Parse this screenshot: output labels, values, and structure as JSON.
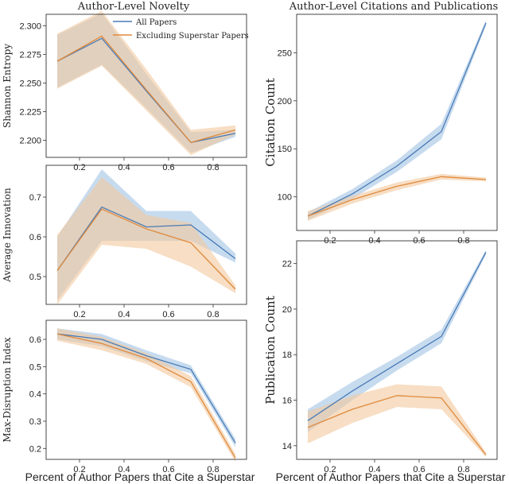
{
  "figure": {
    "left_title": "Author-Level Novelty",
    "right_title": "Author-Level Citations and Publications",
    "left_xlabel": "Percent of Author Papers that Cite a Superstar",
    "right_xlabel": "Percent of Author Papers that Cite a Superstar"
  },
  "legend": {
    "items": [
      {
        "label": "All Papers",
        "color": "#4a7bb5"
      },
      {
        "label": "Excluding Superstar Papers",
        "color": "#e08a3c"
      }
    ]
  },
  "colors": {
    "all": "#4a7bb5",
    "all_band": "#a9c7e6",
    "excl": "#e08a3c",
    "excl_band": "#f2c89c",
    "axis": "#333333"
  },
  "chart_data": [
    {
      "id": "shannon",
      "type": "line",
      "ylabel": "Shannon Entropy",
      "x": [
        0.1,
        0.3,
        0.5,
        0.7,
        0.9
      ],
      "xlim": [
        0.05,
        0.95
      ],
      "ylim": [
        2.185,
        2.31
      ],
      "xticks": [
        0.2,
        0.4,
        0.6,
        0.8
      ],
      "xticklabels": [
        "0.2",
        "0.4",
        "0.6",
        "0.8"
      ],
      "yticks": [
        2.2,
        2.225,
        2.25,
        2.275,
        2.3
      ],
      "yticklabels": [
        "2.200",
        "2.225",
        "2.250",
        "2.275",
        "2.300"
      ],
      "series": [
        {
          "name": "All Papers",
          "values": [
            2.269,
            2.289,
            2.243,
            2.198,
            2.206
          ],
          "lower": [
            2.246,
            2.266,
            2.228,
            2.189,
            2.203
          ],
          "upper": [
            2.292,
            2.311,
            2.258,
            2.207,
            2.209
          ]
        },
        {
          "name": "Excluding Superstar Papers",
          "values": [
            2.269,
            2.291,
            2.244,
            2.198,
            2.209
          ],
          "lower": [
            2.245,
            2.265,
            2.226,
            2.187,
            2.205
          ],
          "upper": [
            2.293,
            2.313,
            2.262,
            2.209,
            2.213
          ]
        }
      ]
    },
    {
      "id": "innovation",
      "type": "line",
      "ylabel": "Average Innovation",
      "x": [
        0.1,
        0.3,
        0.5,
        0.7,
        0.9
      ],
      "xlim": [
        0.05,
        0.95
      ],
      "ylim": [
        0.43,
        0.78
      ],
      "xticks": [
        0.2,
        0.4,
        0.6,
        0.8
      ],
      "xticklabels": [
        "0.2",
        "0.4",
        "0.6",
        "0.8"
      ],
      "yticks": [
        0.5,
        0.6,
        0.7
      ],
      "yticklabels": [
        "0.5",
        "0.6",
        "0.7"
      ],
      "series": [
        {
          "name": "All Papers",
          "values": [
            0.515,
            0.675,
            0.625,
            0.63,
            0.545
          ],
          "lower": [
            0.44,
            0.59,
            0.59,
            0.59,
            0.535
          ],
          "upper": [
            0.6,
            0.77,
            0.665,
            0.665,
            0.558
          ]
        },
        {
          "name": "Excluding Superstar Papers",
          "values": [
            0.515,
            0.67,
            0.62,
            0.585,
            0.468
          ],
          "lower": [
            0.43,
            0.58,
            0.57,
            0.525,
            0.458
          ],
          "upper": [
            0.605,
            0.75,
            0.655,
            0.635,
            0.478
          ]
        }
      ]
    },
    {
      "id": "disruption",
      "type": "line",
      "ylabel": "Max-Disruption Index",
      "x": [
        0.1,
        0.3,
        0.5,
        0.7,
        0.9
      ],
      "xlim": [
        0.05,
        0.95
      ],
      "ylim": [
        0.16,
        0.67
      ],
      "xticks": [
        0.2,
        0.4,
        0.6,
        0.8
      ],
      "xticklabels": [
        "0.2",
        "0.4",
        "0.6",
        "0.8"
      ],
      "yticks": [
        0.2,
        0.3,
        0.4,
        0.5,
        0.6
      ],
      "yticklabels": [
        "0.2",
        "0.3",
        "0.4",
        "0.5",
        "0.6"
      ],
      "series": [
        {
          "name": "All Papers",
          "values": [
            0.62,
            0.6,
            0.54,
            0.49,
            0.22
          ],
          "lower": [
            0.6,
            0.575,
            0.52,
            0.475,
            0.205
          ],
          "upper": [
            0.64,
            0.62,
            0.56,
            0.505,
            0.235
          ]
        },
        {
          "name": "Excluding Superstar Papers",
          "values": [
            0.62,
            0.585,
            0.53,
            0.445,
            0.165
          ],
          "lower": [
            0.595,
            0.56,
            0.51,
            0.425,
            0.15
          ],
          "upper": [
            0.64,
            0.61,
            0.55,
            0.465,
            0.18
          ]
        }
      ]
    },
    {
      "id": "citations",
      "type": "line",
      "ylabel": "Citation Count",
      "x": [
        0.1,
        0.3,
        0.5,
        0.7,
        0.9
      ],
      "xlim": [
        0.05,
        0.95
      ],
      "ylim": [
        65,
        290
      ],
      "xticks": [
        0.2,
        0.4,
        0.6,
        0.8
      ],
      "xticklabels": [
        "0.2",
        "0.4",
        "0.6",
        "0.8"
      ],
      "yticks": [
        100,
        150,
        200,
        250
      ],
      "yticklabels": [
        "100",
        "150",
        "200",
        "250"
      ],
      "series": [
        {
          "name": "All Papers",
          "values": [
            80,
            103,
            132,
            168,
            281
          ],
          "lower": [
            76,
            98,
            126,
            160,
            278
          ],
          "upper": [
            84,
            108,
            138,
            176,
            284
          ]
        },
        {
          "name": "Excluding Superstar Papers",
          "values": [
            80,
            97,
            111,
            121,
            118
          ],
          "lower": [
            75,
            93,
            107,
            118,
            116
          ],
          "upper": [
            85,
            101,
            115,
            124,
            120
          ]
        }
      ]
    },
    {
      "id": "publications",
      "type": "line",
      "ylabel": "Publication Count",
      "x": [
        0.1,
        0.3,
        0.5,
        0.7,
        0.9
      ],
      "xlim": [
        0.05,
        0.95
      ],
      "ylim": [
        13.4,
        23.0
      ],
      "xticks": [
        0.2,
        0.4,
        0.6,
        0.8
      ],
      "xticklabels": [
        "0.2",
        "0.4",
        "0.6",
        "0.8"
      ],
      "yticks": [
        14,
        16,
        18,
        20,
        22
      ],
      "yticklabels": [
        "14",
        "16",
        "18",
        "20",
        "22"
      ],
      "series": [
        {
          "name": "All Papers",
          "values": [
            15.1,
            16.4,
            17.6,
            18.8,
            22.5
          ],
          "lower": [
            14.6,
            16.0,
            17.3,
            18.5,
            22.4
          ],
          "upper": [
            15.6,
            16.8,
            17.9,
            19.1,
            22.6
          ]
        },
        {
          "name": "Excluding Superstar Papers",
          "values": [
            14.8,
            15.6,
            16.2,
            16.1,
            13.6
          ],
          "lower": [
            14.1,
            15.0,
            15.7,
            15.6,
            13.5
          ],
          "upper": [
            15.5,
            16.2,
            16.7,
            16.6,
            13.7
          ]
        }
      ]
    }
  ]
}
